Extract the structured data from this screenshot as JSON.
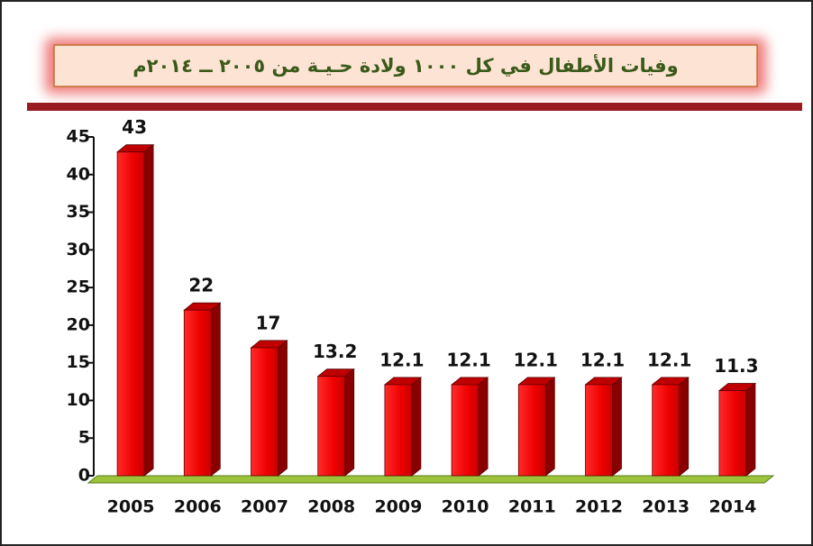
{
  "chart_data": {
    "type": "bar",
    "title": "وفيات الأطفال في كل ١٠٠٠ ولادة حـيـة من ٢٠٠٥ ــ ٢٠١٤م",
    "categories": [
      "2005",
      "2006",
      "2007",
      "2008",
      "2009",
      "2010",
      "2011",
      "2012",
      "2013",
      "2014"
    ],
    "values": [
      43,
      22,
      17,
      13.2,
      12.1,
      12.1,
      12.1,
      12.1,
      12.1,
      11.3
    ],
    "color": "#ee0000",
    "ylim": [
      0,
      45
    ],
    "yticks": [
      0,
      5,
      10,
      15,
      20,
      25,
      30,
      35,
      40,
      45
    ],
    "grid": false
  }
}
